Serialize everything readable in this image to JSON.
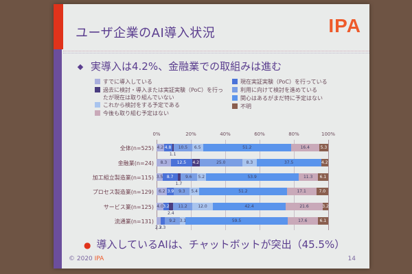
{
  "slide": {
    "title": "ユーザ企業のAI導入状況",
    "logo": "IPA",
    "bullet1": "実導入は4.2%、金融業での取組みは進む",
    "bullet2": "導入しているAIは、チャットボットが突出（45.5%）",
    "footer_copy": "© 2020",
    "footer_org": "IPA",
    "page_number": "14",
    "colors": {
      "accent_red": "#e0331b",
      "accent_purple": "#6b4e9c",
      "title_text": "#5a3d8e",
      "logo": "#ee5a2a"
    }
  },
  "legend": [
    {
      "label": "すでに導入している",
      "color": "#a9aedd"
    },
    {
      "label": "過去に検討・導入または実証実験（PoC）を行ったが現在は取り組んでいない",
      "color": "#4a3d80"
    },
    {
      "label": "これから検討をする予定である",
      "color": "#a9c4ee"
    },
    {
      "label": "今後も取り組む予定はない",
      "color": "#c9a9b9"
    },
    {
      "label": "現在実証実験（PoC）を行っている",
      "color": "#4a72d8"
    },
    {
      "label": "利用に向けて検討を進めている",
      "color": "#7a9ee4"
    },
    {
      "label": "関心はあるがまだ特に予定はない",
      "color": "#5a94ec"
    },
    {
      "label": "不明",
      "color": "#8a5e4e"
    }
  ],
  "chart_data": {
    "type": "bar",
    "orientation": "horizontal-stacked-100",
    "title": "",
    "xlabel": "",
    "ylabel": "",
    "xlim": [
      0,
      100
    ],
    "x_ticks": [
      "0%",
      "20%",
      "40%",
      "60%",
      "80%",
      "100%"
    ],
    "categories": [
      "全体(n=525)",
      "金融業(n=24)",
      "加工組立製造業(n=115)",
      "プロセス製造業(n=129)",
      "サービス業(n=125)",
      "流通業(n=131)"
    ],
    "series": [
      {
        "name": "すでに導入している",
        "values": [
          4.2,
          8.3,
          3.5,
          6.2,
          4.0,
          2.3
        ]
      },
      {
        "name": "現在実証実験（PoC）を行っている",
        "values": [
          4.8,
          12.5,
          8.7,
          3.9,
          3.2,
          2.3
        ]
      },
      {
        "name": "過去に検討・導入または実証実験（PoC）を行ったが現在は取り組んでいない",
        "values": [
          1.1,
          4.2,
          1.7,
          0,
          2.4,
          0
        ]
      },
      {
        "name": "利用に向けて検討を進めている",
        "values": [
          10.5,
          25.0,
          9.6,
          9.3,
          11.2,
          9.2
        ]
      },
      {
        "name": "これから検討をする予定である",
        "values": [
          6.5,
          8.3,
          5.2,
          5.4,
          12.0,
          3.1
        ]
      },
      {
        "name": "関心はあるがまだ特に予定はない",
        "values": [
          51.2,
          37.5,
          53.9,
          51.2,
          42.4,
          59.5
        ]
      },
      {
        "name": "今後も取り組む予定はない",
        "values": [
          16.4,
          0,
          11.3,
          17.1,
          21.6,
          17.6
        ]
      },
      {
        "name": "不明",
        "values": [
          5.3,
          4.2,
          6.1,
          7.0,
          3.2,
          6.1
        ]
      }
    ],
    "legend_position": "top",
    "grid": true
  }
}
